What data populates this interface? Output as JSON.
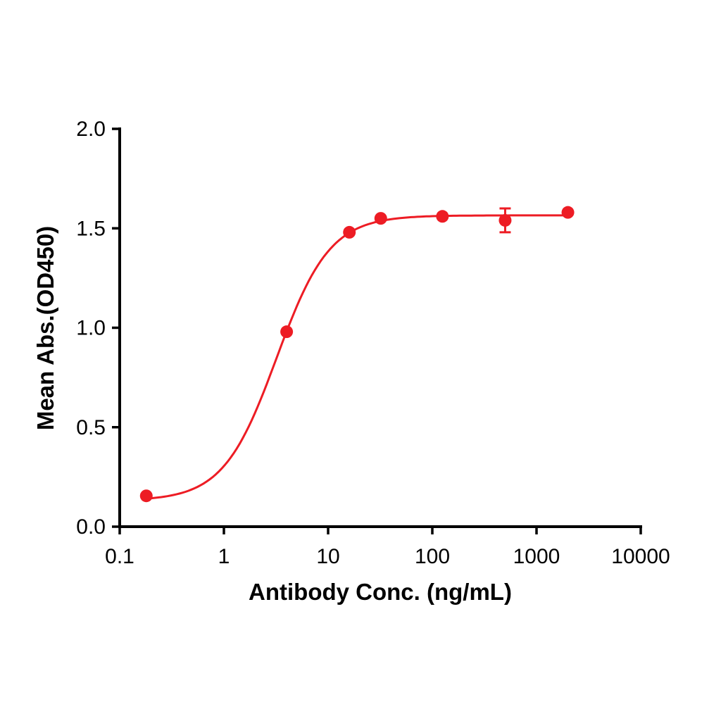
{
  "chart_data": {
    "type": "scatter",
    "title": "",
    "xlabel": "Antibody Conc. (ng/mL)",
    "ylabel": "Mean Abs.(OD450)",
    "x_scale": "log10",
    "xlim": [
      0.1,
      10000
    ],
    "ylim": [
      0.0,
      2.0
    ],
    "x_ticks": [
      0.1,
      1,
      10,
      100,
      1000,
      10000
    ],
    "x_tick_labels": [
      "0.1",
      "1",
      "10",
      "100",
      "1000",
      "10000"
    ],
    "y_ticks": [
      0.0,
      0.5,
      1.0,
      1.5,
      2.0
    ],
    "y_tick_labels": [
      "0.0",
      "0.5",
      "1.0",
      "1.5",
      "2.0"
    ],
    "grid": false,
    "legend": "none",
    "axis_color": "#000000",
    "series": [
      {
        "color": "#ed1c24",
        "marker": "circle",
        "marker_radius": 9,
        "points": [
          {
            "x": 0.18,
            "y": 0.155
          },
          {
            "x": 4,
            "y": 0.98
          },
          {
            "x": 16,
            "y": 1.48
          },
          {
            "x": 32,
            "y": 1.55
          },
          {
            "x": 125,
            "y": 1.56
          },
          {
            "x": 500,
            "y": 1.54,
            "yerr": 0.06
          },
          {
            "x": 2000,
            "y": 1.58
          }
        ],
        "fit": {
          "model": "4PL",
          "bottom": 0.13,
          "top": 1.565,
          "ec50": 3.2,
          "hill": 1.7
        }
      }
    ]
  }
}
